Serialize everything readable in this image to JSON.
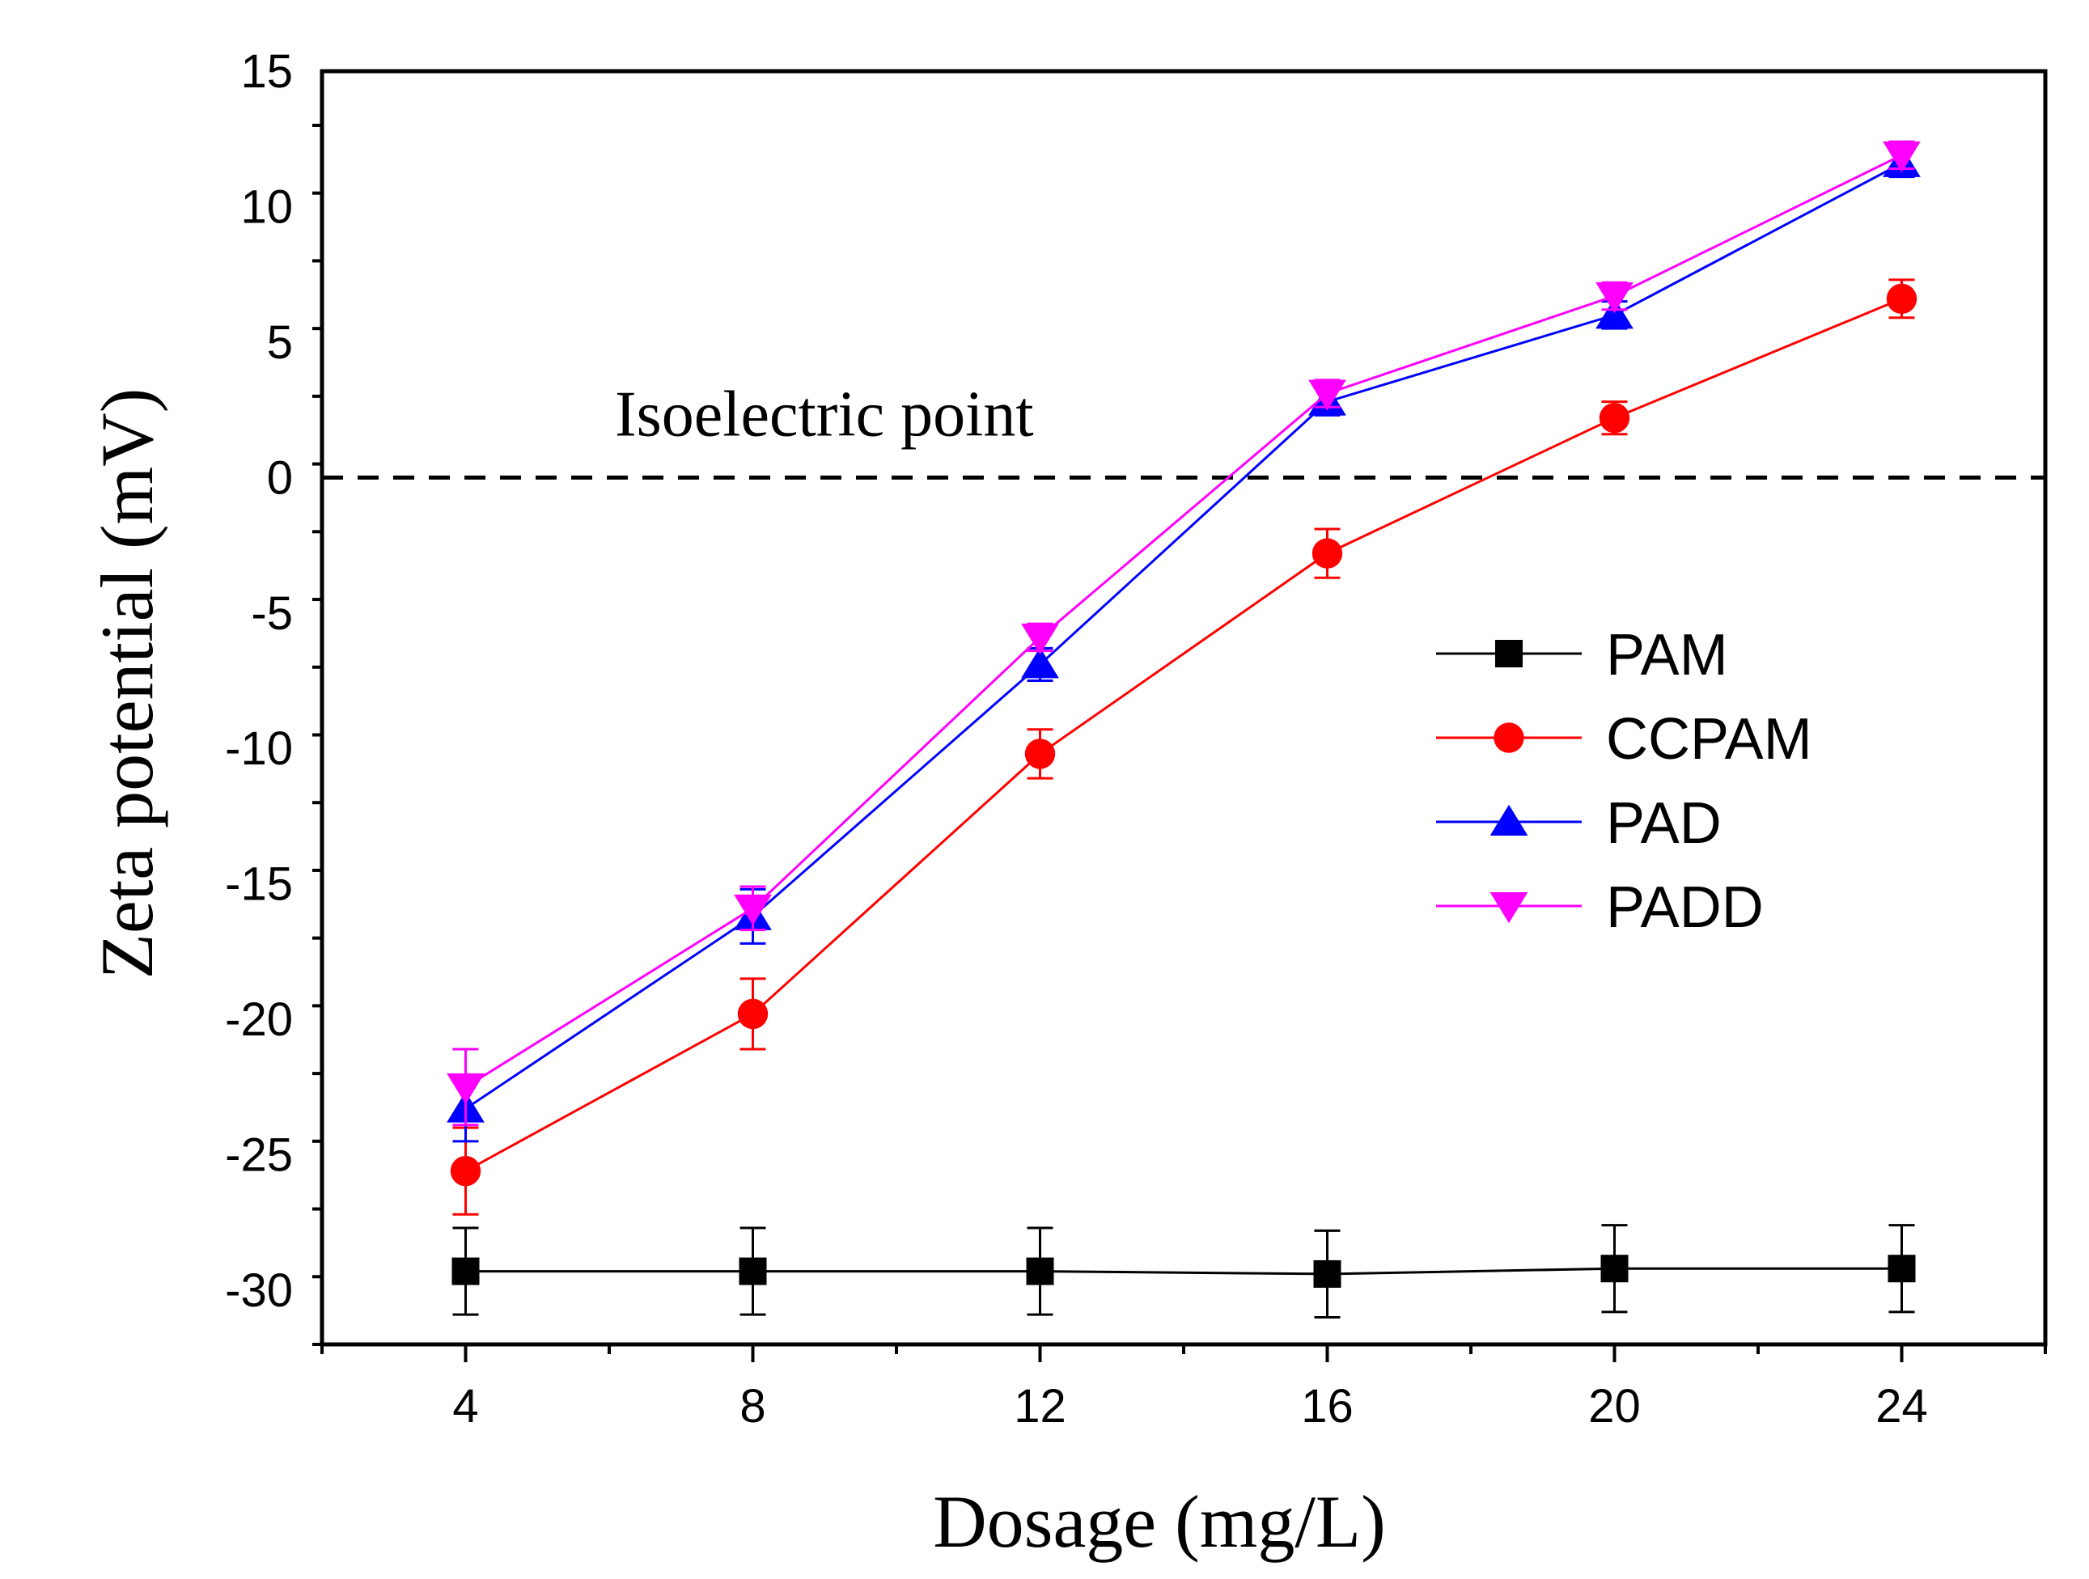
{
  "chart_data": {
    "type": "line",
    "title": "",
    "xlabel": "Dosage (mg/L)",
    "ylabel": "Zeta potential (mV)",
    "x": [
      4,
      8,
      12,
      16,
      20,
      24
    ],
    "xlim": [
      2,
      26
    ],
    "ylim": [
      -32,
      15
    ],
    "xticks": [
      4,
      8,
      12,
      16,
      20,
      24
    ],
    "yticks": [
      15,
      10,
      5,
      0,
      -5,
      -10,
      -15,
      -20,
      -25,
      -30
    ],
    "reference_line": {
      "y": 0,
      "style": "dashed",
      "label": "Isoelectric point"
    },
    "legend_position": "right-middle",
    "series": [
      {
        "name": "PAM",
        "color": "#000000",
        "marker": "square",
        "values": [
          -29.3,
          -29.3,
          -29.3,
          -29.4,
          -29.2,
          -29.2
        ],
        "errors": [
          1.6,
          1.6,
          1.6,
          1.6,
          1.6,
          1.6
        ]
      },
      {
        "name": "CCPAM",
        "color": "#ff0000",
        "marker": "circle",
        "values": [
          -25.6,
          -19.8,
          -10.2,
          -2.8,
          2.2,
          6.6
        ],
        "errors": [
          1.6,
          1.3,
          0.9,
          0.9,
          0.6,
          0.7
        ]
      },
      {
        "name": "PAD",
        "color": "#0000ff",
        "marker": "triangle-up",
        "values": [
          -23.3,
          -16.2,
          -6.9,
          2.8,
          6.0,
          11.6
        ],
        "errors": [
          1.2,
          1.0,
          0.6,
          0.5,
          0.5,
          0.5
        ]
      },
      {
        "name": "PADD",
        "color": "#ff00ff",
        "marker": "triangle-down",
        "values": [
          -22.5,
          -15.9,
          -5.9,
          3.1,
          6.7,
          11.9
        ],
        "errors": [
          1.4,
          0.8,
          0.5,
          0.5,
          0.5,
          0.5
        ]
      }
    ]
  }
}
